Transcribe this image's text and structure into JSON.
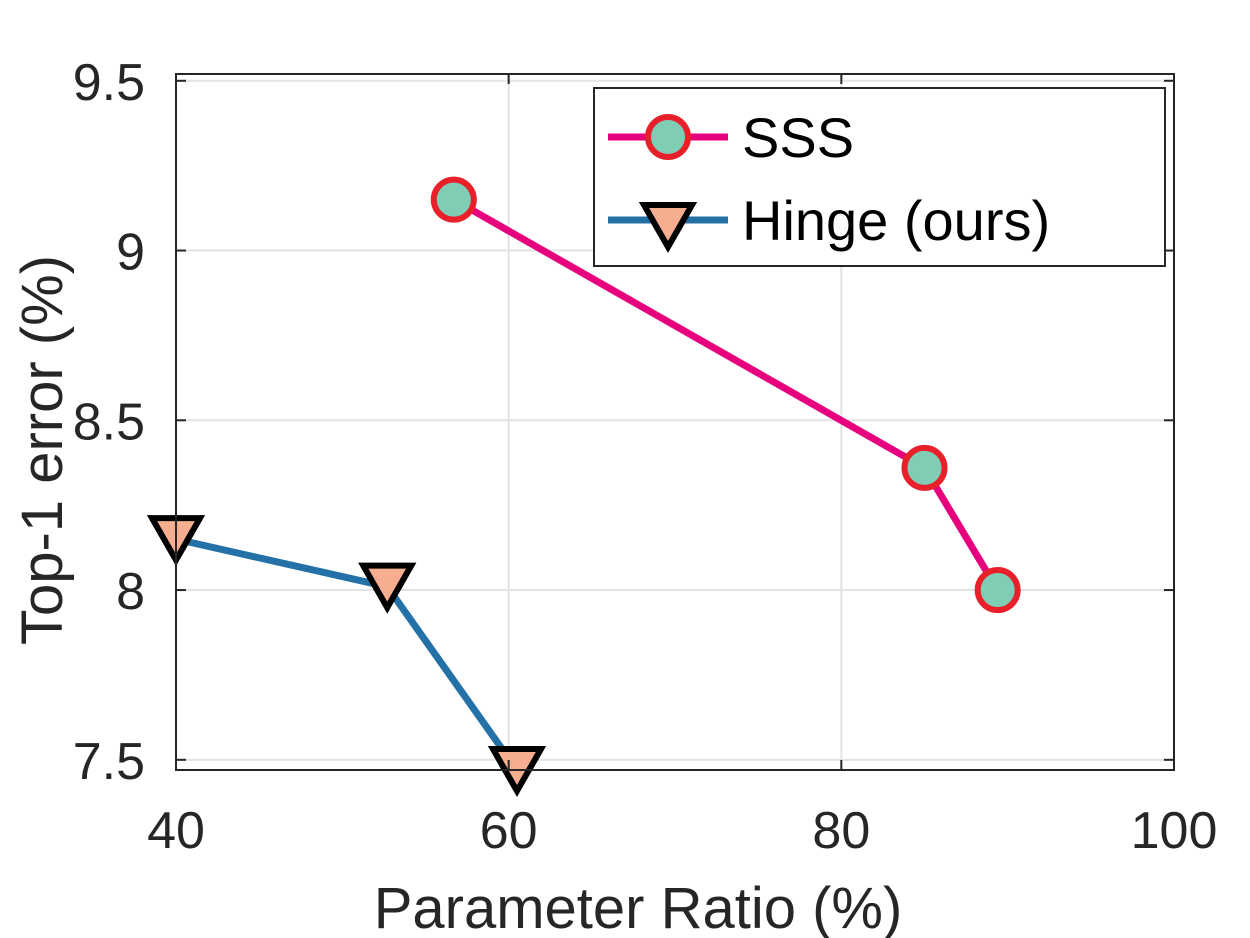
{
  "chart_data": {
    "type": "line",
    "title": "",
    "xlabel": "Parameter Ratio (%)",
    "ylabel": "Top-1 error (%)",
    "xlim": [
      40,
      100
    ],
    "ylim": [
      7.47,
      9.52
    ],
    "xticks": [
      40,
      60,
      80,
      100
    ],
    "yticks": [
      7.5,
      8,
      8.5,
      9,
      9.5
    ],
    "xtick_labels": [
      "40",
      "60",
      "80",
      "100"
    ],
    "ytick_labels": [
      "7.5",
      "8",
      "8.5",
      "9",
      "9.5"
    ],
    "grid": true,
    "legend_position": "top-right",
    "series": [
      {
        "name": "SSS",
        "marker": "circle",
        "line_color": "#e6007e",
        "marker_fill": "#7fcdb5",
        "marker_edge": "#e8202a",
        "points": [
          [
            56.7,
            9.15
          ],
          [
            85.0,
            8.36
          ],
          [
            89.4,
            8.0
          ]
        ]
      },
      {
        "name": "Hinge (ours)",
        "marker": "triangle-down",
        "line_color": "#2471a8",
        "marker_fill": "#f7ae90",
        "marker_edge": "#000000",
        "points": [
          [
            40.0,
            8.15
          ],
          [
            52.7,
            8.01
          ],
          [
            60.5,
            7.47
          ]
        ]
      }
    ]
  }
}
